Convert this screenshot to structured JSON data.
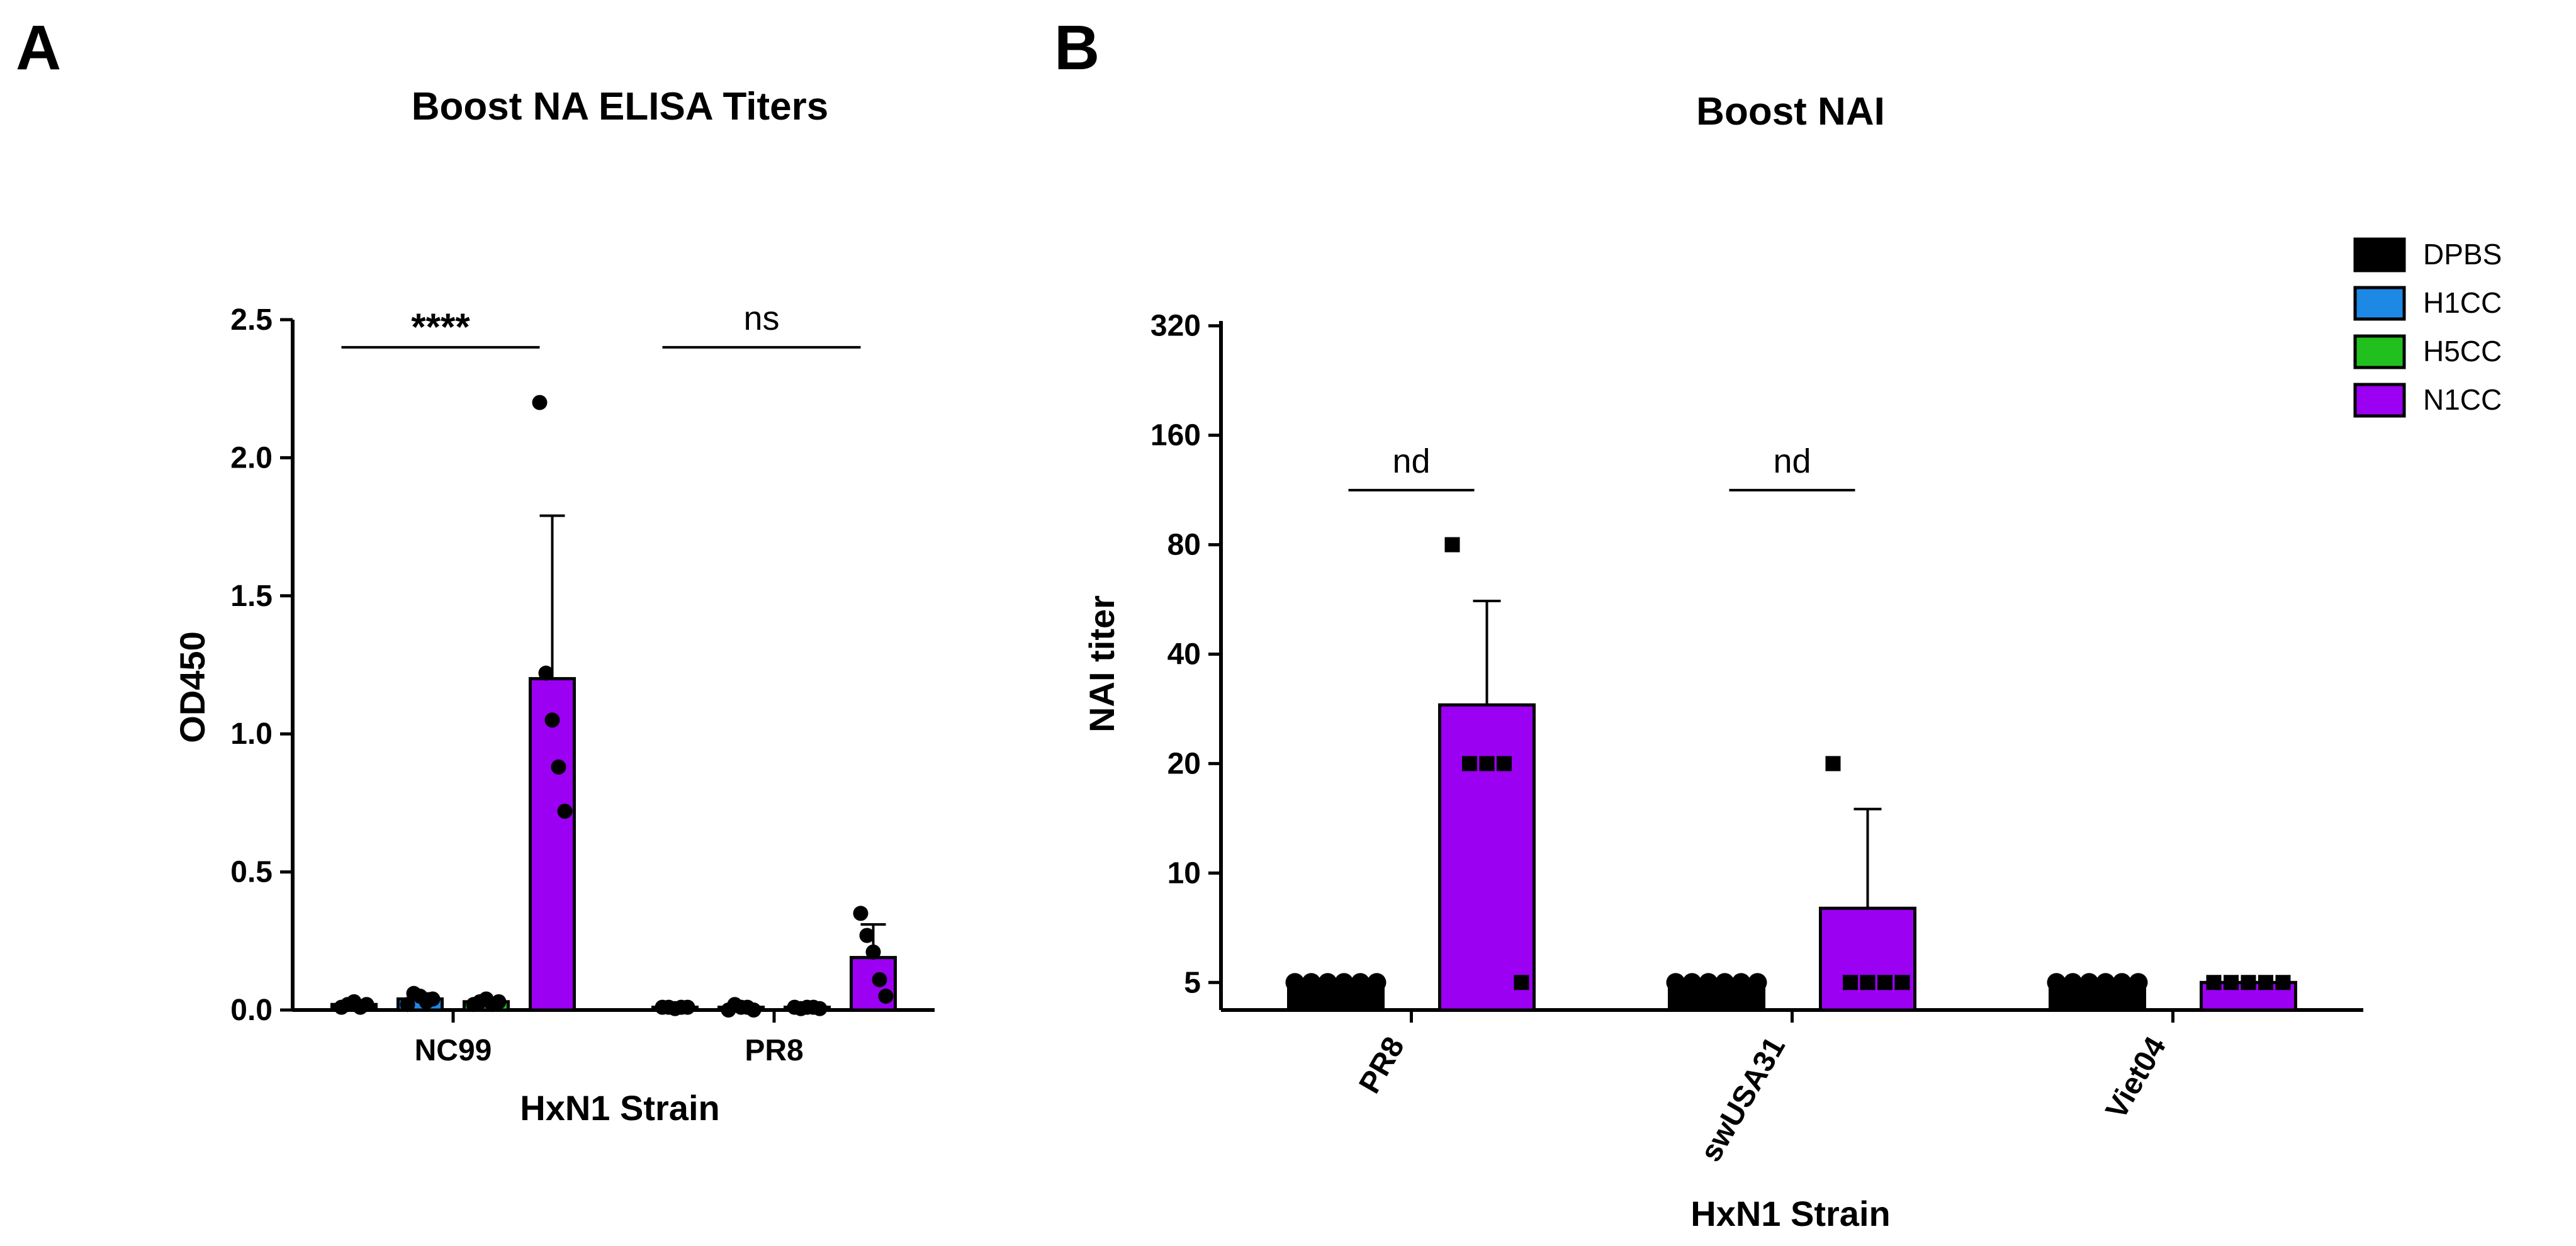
{
  "panels": {
    "a": {
      "letter": "A",
      "title": "Boost NA ELISA Titers",
      "xlabel": "HxN1 Strain",
      "ylabel": "OD450"
    },
    "b": {
      "letter": "B",
      "title": "Boost NAI",
      "xlabel": "HxN1 Strain",
      "ylabel": "NAI titer"
    }
  },
  "legend": [
    {
      "name": "DPBS",
      "color": "#000000"
    },
    {
      "name": "H1CC",
      "color": "#1e88e5"
    },
    {
      "name": "H5CC",
      "color": "#22c01e"
    },
    {
      "name": "N1CC",
      "color": "#9b00f2"
    }
  ],
  "chart_data": [
    {
      "type": "bar",
      "title": "Boost NA ELISA Titers",
      "xlabel": "HxN1 Strain",
      "ylabel": "OD450",
      "ylim": [
        0,
        2.5
      ],
      "yticks": [
        "0.0",
        "0.5",
        "1.0",
        "1.5",
        "2.0",
        "2.5"
      ],
      "categories": [
        "NC99",
        "PR8"
      ],
      "series": [
        {
          "name": "DPBS",
          "color": "#000000",
          "values": [
            0.02,
            0.01
          ],
          "errors": [
            0.01,
            0.005
          ],
          "points": [
            [
              0.01,
              0.02,
              0.03,
              0.01,
              0.02
            ],
            [
              0.01,
              0.01,
              0.005,
              0.01,
              0.01
            ]
          ]
        },
        {
          "name": "H1CC",
          "color": "#1e88e5",
          "values": [
            0.04,
            0.01
          ],
          "errors": [
            0.02,
            0.01
          ],
          "points": [
            [
              0.02,
              0.06,
              0.05,
              0.03,
              0.04
            ],
            [
              0.0,
              0.02,
              0.01,
              0.01,
              0.0
            ]
          ]
        },
        {
          "name": "H5CC",
          "color": "#22c01e",
          "values": [
            0.03,
            0.01
          ],
          "errors": [
            0.01,
            0.005
          ],
          "points": [
            [
              0.02,
              0.03,
              0.04,
              0.02,
              0.03
            ],
            [
              0.01,
              0.005,
              0.01,
              0.01,
              0.005
            ]
          ]
        },
        {
          "name": "N1CC",
          "color": "#9b00f2",
          "values": [
            1.2,
            0.19
          ],
          "errors": [
            0.59,
            0.12
          ],
          "points": [
            [
              2.2,
              1.22,
              1.05,
              0.88,
              0.72
            ],
            [
              0.35,
              0.27,
              0.21,
              0.11,
              0.05
            ]
          ]
        }
      ],
      "annotations": [
        {
          "category": "NC99",
          "text": "****",
          "from_series": "DPBS",
          "to_series": "N1CC",
          "y": 2.4
        },
        {
          "category": "PR8",
          "text": "ns",
          "from_series": "DPBS",
          "to_series": "N1CC",
          "y": 2.4
        }
      ]
    },
    {
      "type": "bar",
      "title": "Boost NAI",
      "xlabel": "HxN1 Strain",
      "ylabel": "NAI titer",
      "yscale": "log2",
      "ylim": [
        4.2,
        330
      ],
      "yticks": [
        5,
        10,
        20,
        40,
        80,
        160,
        320
      ],
      "categories": [
        "PR8",
        "swUSA31",
        "Viet04"
      ],
      "series": [
        {
          "name": "DPBS",
          "color": "#000000",
          "values": [
            5,
            5,
            5
          ],
          "points": [
            [
              5,
              5,
              5,
              5,
              5,
              5
            ],
            [
              5,
              5,
              5,
              5,
              5,
              5
            ],
            [
              5,
              5,
              5,
              5,
              5,
              5
            ]
          ]
        },
        {
          "name": "N1CC",
          "color": "#9b00f2",
          "values": [
            29,
            8,
            5
          ],
          "errors": [
            56,
            15,
            5
          ],
          "points": [
            [
              80,
              20,
              20,
              20,
              5
            ],
            [
              20,
              5,
              5,
              5,
              5
            ],
            [
              5,
              5,
              5,
              5,
              5
            ]
          ]
        }
      ],
      "annotations": [
        {
          "category": "PR8",
          "text": "nd",
          "y": 113
        },
        {
          "category": "swUSA31",
          "text": "nd",
          "y": 113
        }
      ]
    }
  ]
}
